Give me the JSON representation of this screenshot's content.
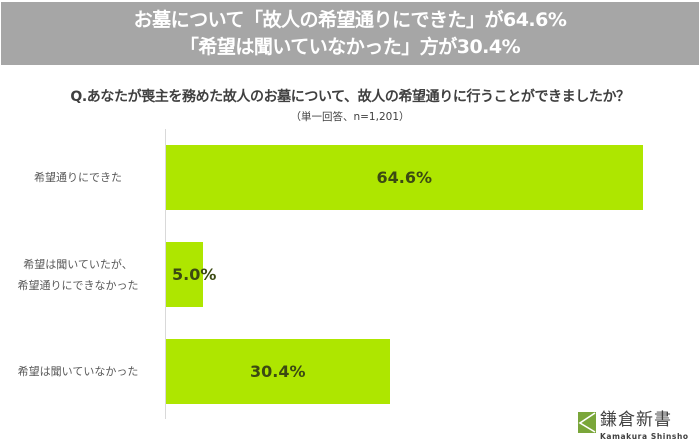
{
  "banner": {
    "line1": "お墓について「故人の希望通りにできた」が64.6%",
    "line2": "「希望は聞いていなかった」方が30.4%"
  },
  "question": "Q.あなたが喪主を務めた故人のお墓について、故人の希望通りに行うことができましたか？",
  "subtitle": "（単一回答、n=1,201）",
  "colors": {
    "banner_bg": "#a6a6a6",
    "bar": "#aee600",
    "value_text": "#3b4a12",
    "axis": "#d9d9d9"
  },
  "chart_data": {
    "type": "bar",
    "orientation": "horizontal",
    "title": "Q.あなたが喪主を務めた故人のお墓について、故人の希望通りに行うことができましたか？",
    "subtitle": "（単一回答、n=1,201）",
    "categories": [
      "希望通りにできた",
      "希望は聞いていたが、希望通りにできなかった",
      "希望は聞いていなかった"
    ],
    "category_lines": [
      [
        "希望通りにできた"
      ],
      [
        "希望は聞いていたが、",
        "希望通りにできなかった"
      ],
      [
        "希望は聞いていなかった"
      ]
    ],
    "values": [
      64.6,
      5.0,
      30.4
    ],
    "value_labels": [
      "64.6%",
      "5.0%",
      "30.4%"
    ],
    "unit": "%",
    "xlabel": "",
    "ylabel": "",
    "xlim": [
      0,
      70
    ],
    "grid": false,
    "legend": null
  },
  "logo": {
    "jp": "鎌倉新書",
    "en": "Kamakura Shinsho"
  }
}
